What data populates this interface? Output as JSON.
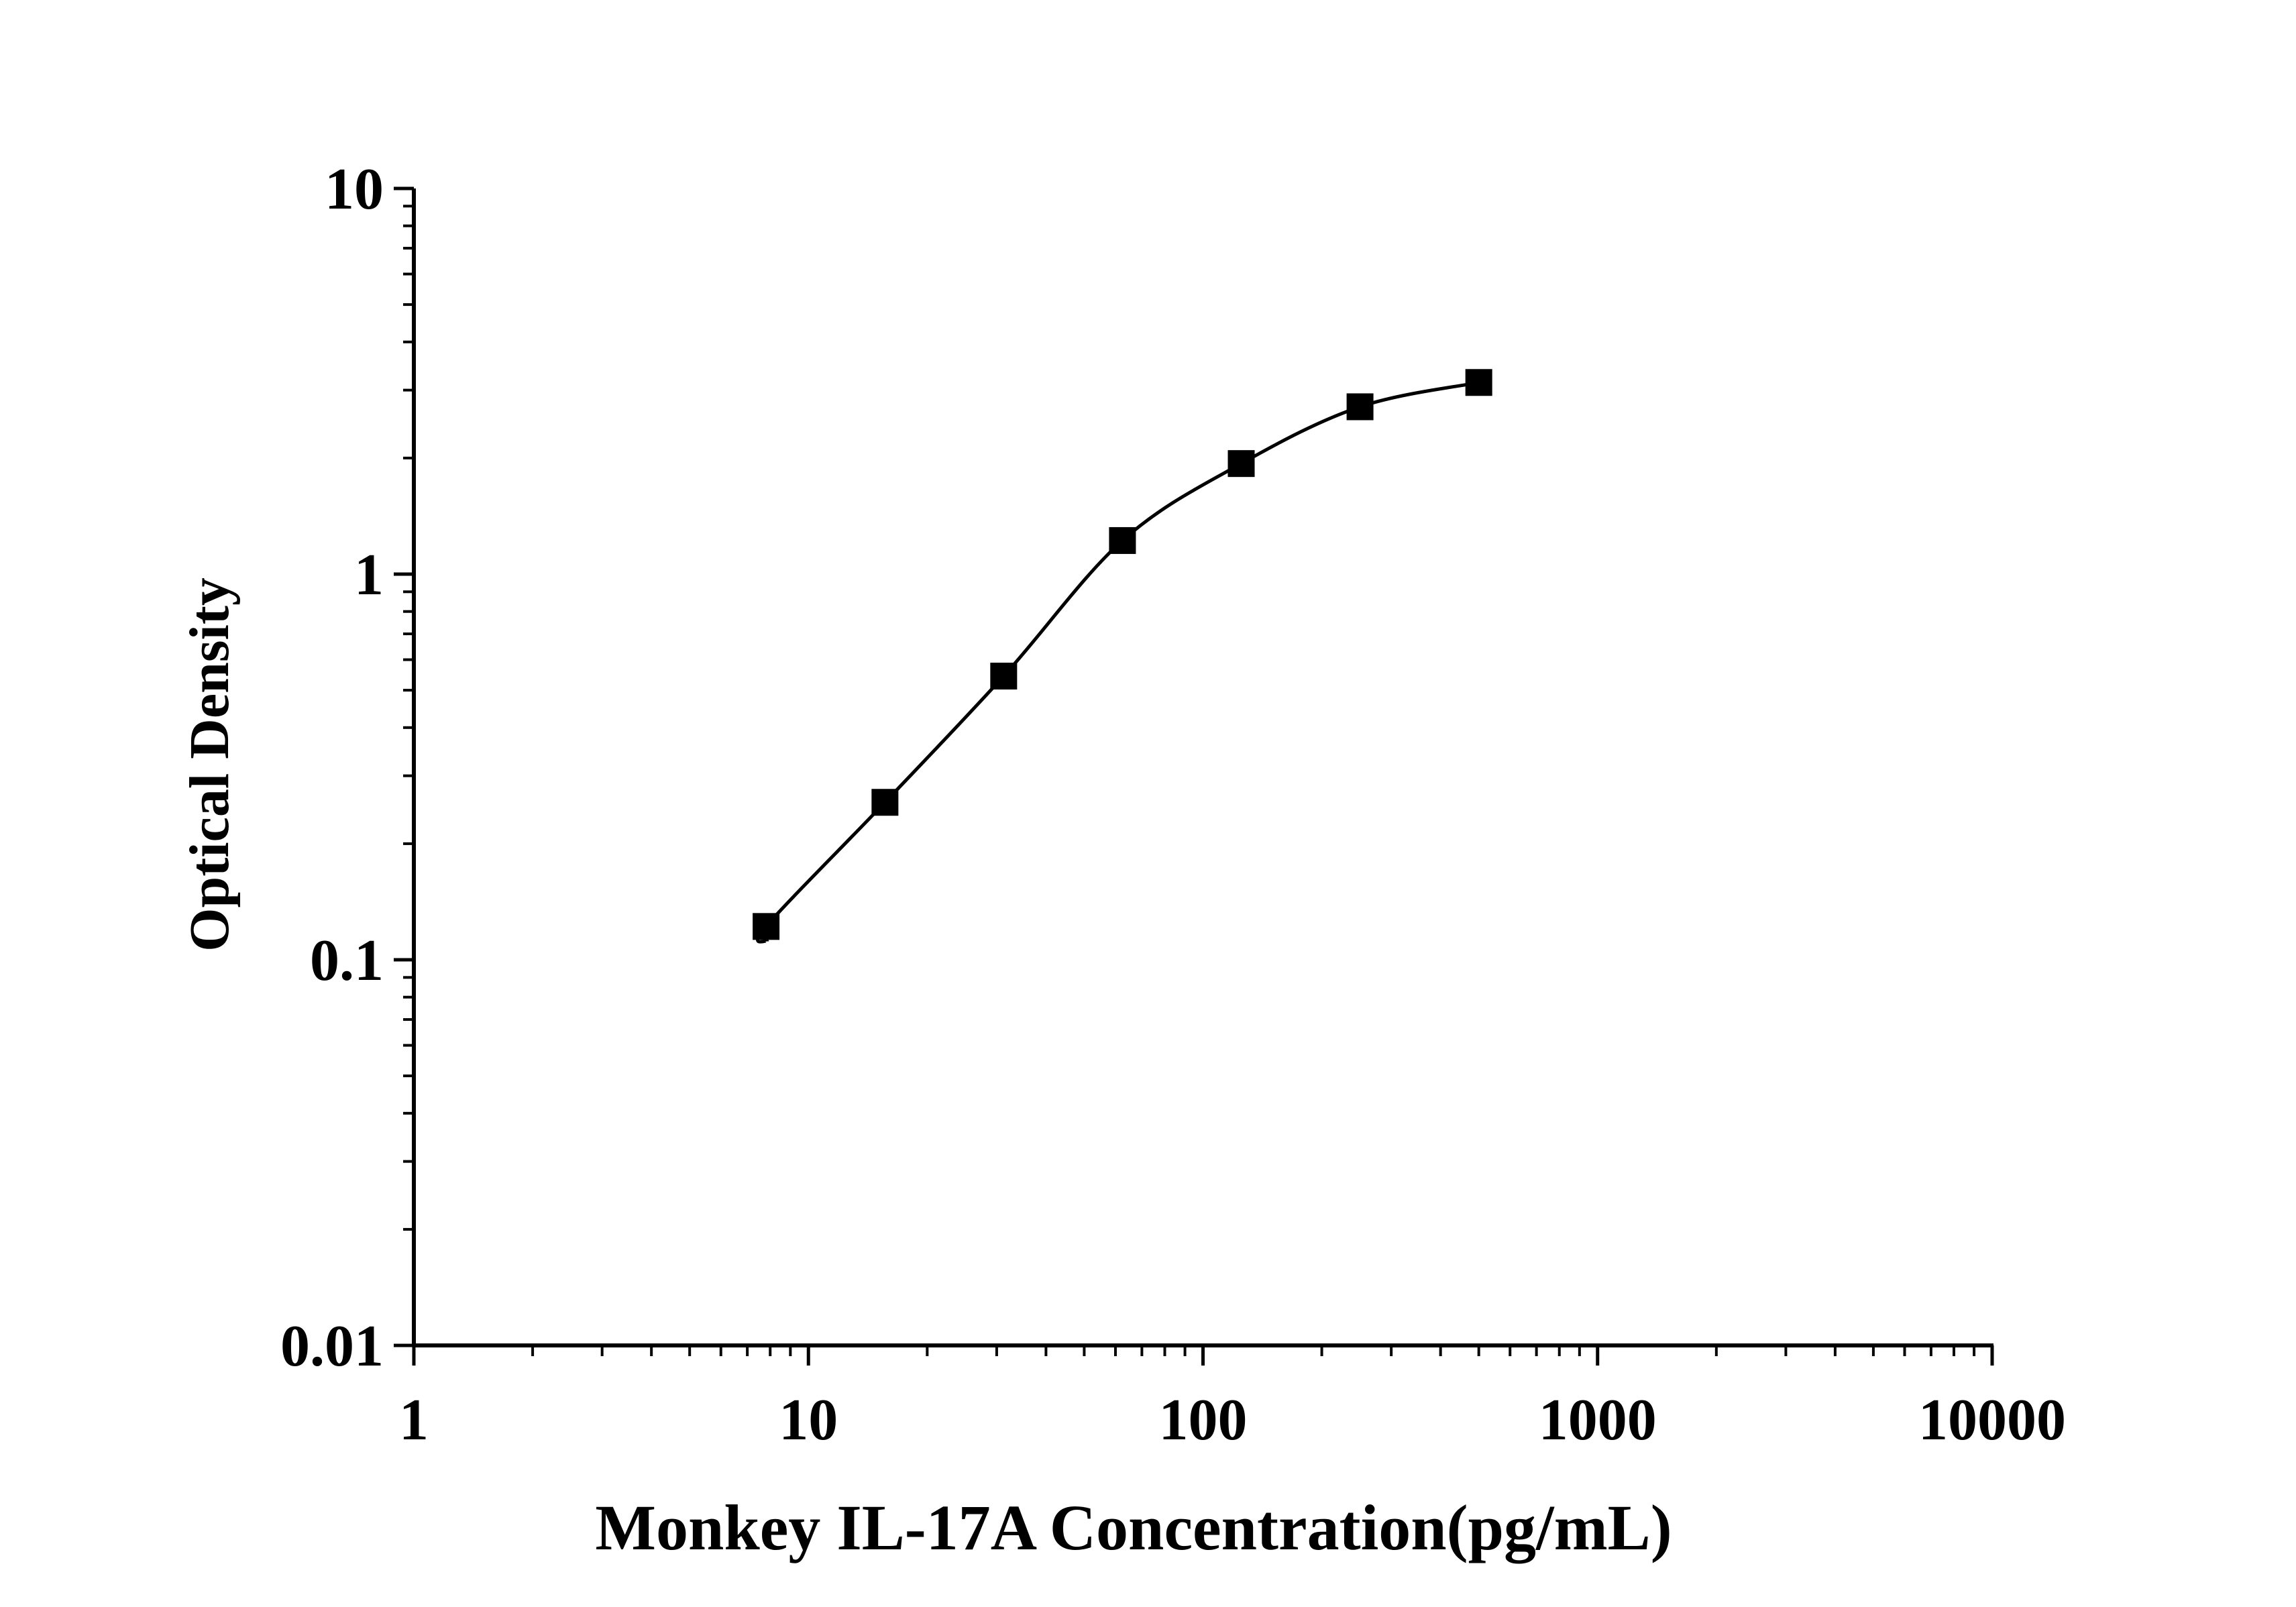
{
  "chart_data": {
    "type": "line",
    "title": "",
    "xlabel": "Monkey IL-17A Concentration(pg/mL)",
    "ylabel": "Optical Density",
    "x_scale": "log",
    "y_scale": "log",
    "xlim": [
      1,
      10000
    ],
    "ylim": [
      0.01,
      10
    ],
    "x_ticks": [
      "1",
      "10",
      "100",
      "1000",
      "10000"
    ],
    "y_ticks": [
      "0.01",
      "0.1",
      "1",
      "10"
    ],
    "grid": false,
    "legend": "none",
    "marker": "square",
    "line_color": "#000000",
    "series": [
      {
        "x": [
          7.81,
          15.63,
          31.25,
          62.5,
          125,
          250,
          500
        ],
        "values": [
          0.122,
          0.256,
          0.544,
          1.222,
          1.935,
          2.716,
          3.14
        ]
      }
    ]
  }
}
